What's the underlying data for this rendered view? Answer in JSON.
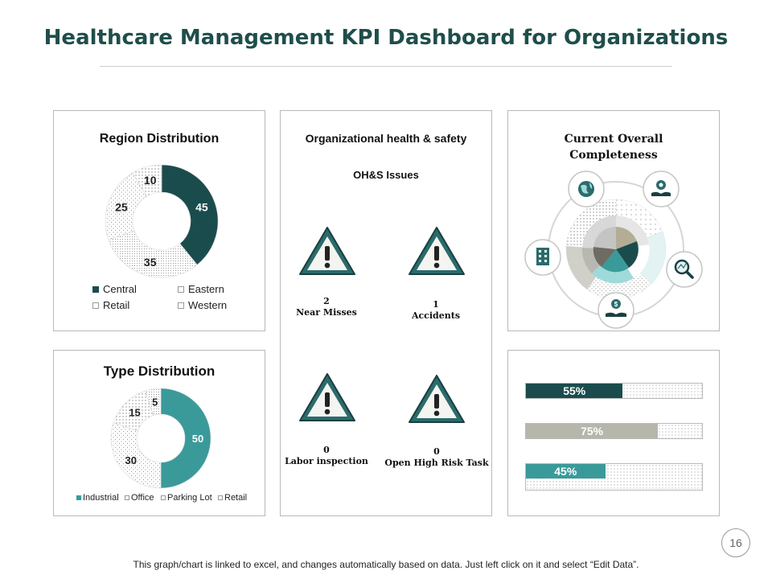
{
  "title": "Healthcare Management KPI Dashboard for Organizations",
  "colors": {
    "dark_teal": "#1b4c4d",
    "teal": "#3a9a9a",
    "gray": "#b7b6ab",
    "title": "#1f4e4b"
  },
  "region": {
    "title": "Region Distribution",
    "legend": [
      "Central",
      "Eastern",
      "Retail",
      "Western"
    ]
  },
  "type": {
    "title": "Type Distribution",
    "legend": [
      "Industrial",
      "Office",
      "Parking Lot",
      "Retail"
    ]
  },
  "ohs": {
    "title": "Organizational health & safety",
    "subtitle": "OH&S Issues",
    "items": [
      {
        "value": "2",
        "label": "Near Misses",
        "icon": "warning-icon"
      },
      {
        "value": "1",
        "label": "Accidents",
        "icon": "warning-icon"
      },
      {
        "value": "0",
        "label": "Labor inspection",
        "icon": "warning-icon"
      },
      {
        "value": "0",
        "label": "Open High Risk Task",
        "icon": "warning-icon"
      }
    ]
  },
  "completeness": {
    "title_line1": "Current Overall",
    "title_line2": "Completeness",
    "icons": [
      "globe-icon",
      "hand-gear-icon",
      "magnifier-chart-icon",
      "money-hand-icon",
      "building-icon"
    ]
  },
  "bars": [
    {
      "label": "55%",
      "value": 55,
      "color": "#1b4c4d"
    },
    {
      "label": "75%",
      "value": 75,
      "color": "#b7b6ab"
    },
    {
      "label": "45%",
      "value": 45,
      "color": "#3a9a9a"
    }
  ],
  "page_number": "16",
  "footer": "This graph/chart is linked to excel, and changes automatically based on data. Just left click on it and select “Edit Data”.",
  "chart_data": [
    {
      "type": "pie",
      "title": "Region Distribution",
      "categories": [
        "Central",
        "Eastern",
        "Retail",
        "Western"
      ],
      "values": [
        45,
        35,
        25,
        10
      ],
      "legend": "bottom"
    },
    {
      "type": "pie",
      "title": "Type Distribution",
      "categories": [
        "Industrial",
        "Office",
        "Parking Lot",
        "Retail"
      ],
      "values": [
        50,
        30,
        15,
        5
      ],
      "legend": "bottom"
    },
    {
      "type": "bar",
      "categories": [
        "",
        "",
        ""
      ],
      "values": [
        55,
        75,
        45
      ],
      "ylim": [
        0,
        100
      ]
    }
  ]
}
